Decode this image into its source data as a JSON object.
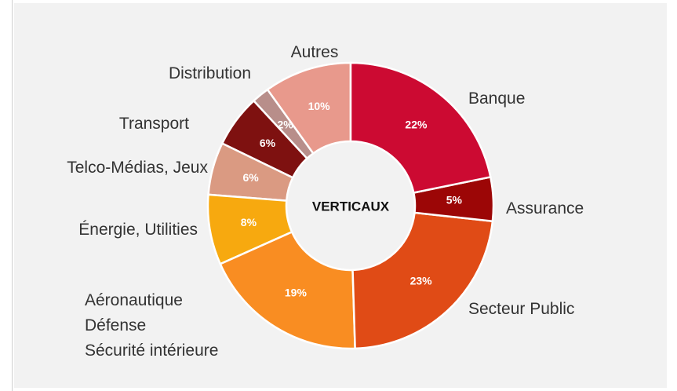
{
  "chart_data": {
    "type": "donut",
    "center_label": "VERTICAUX",
    "categories": [
      "Banque",
      "Assurance",
      "Secteur Public",
      "Aéronautique\nDéfense\nSécurité intérieure",
      "Énergie, Utilities",
      "Telco-Médias, Jeux",
      "Transport",
      "Distribution",
      "Autres"
    ],
    "values": [
      22,
      5,
      23,
      19,
      8,
      6,
      6,
      2,
      10
    ],
    "value_labels": [
      "22%",
      "5%",
      "23%",
      "19%",
      "8%",
      "6%",
      "6%",
      "2%",
      "10%"
    ],
    "colors": [
      "#cc0a32",
      "#9c0606",
      "#e04b16",
      "#f98d22",
      "#f7a90f",
      "#da9a82",
      "#7e1110",
      "#b88e8a",
      "#e8998c"
    ]
  }
}
